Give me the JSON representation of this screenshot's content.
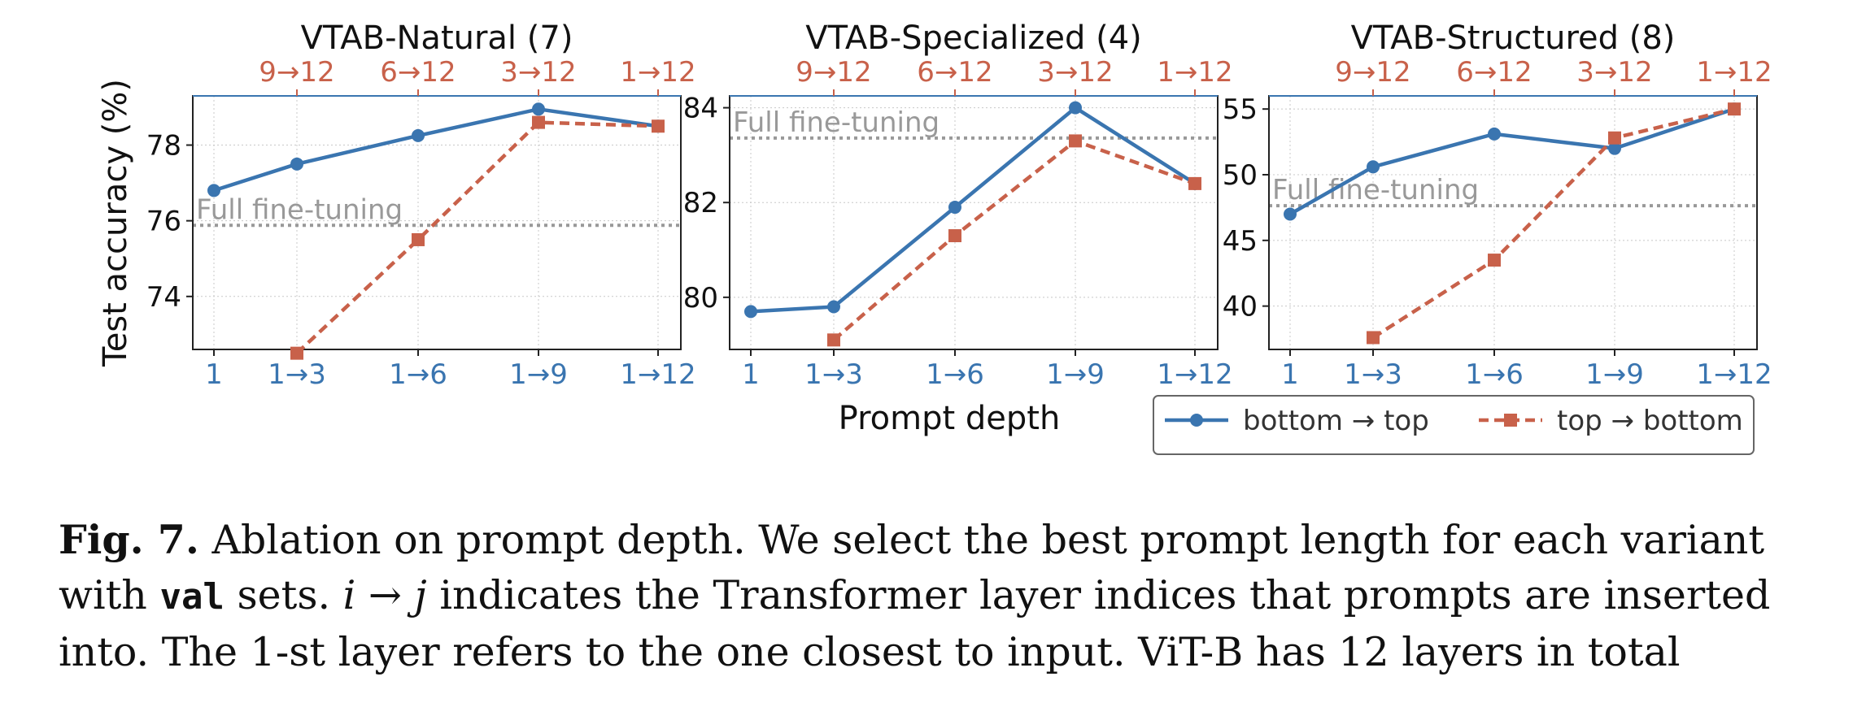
{
  "colors": {
    "bottom_top": "#3a75b0",
    "top_bottom": "#c8614a",
    "full_ft": "#999999",
    "grid": "#c8c8c8"
  },
  "chart_data": [
    {
      "type": "line",
      "title": "VTAB-Natural (7)",
      "categories": [
        "1",
        "1→3",
        "1→6",
        "1→9",
        "1→12"
      ],
      "top_ticks": [
        "9→12",
        "6→12",
        "3→12",
        "1→12"
      ],
      "ylim": [
        72.6,
        79.3
      ],
      "yticks": [
        74,
        76,
        78
      ],
      "ylabel": "Test accuracy (%)",
      "full_finetuning": 75.88,
      "full_label": "Full fine-tuning",
      "series": [
        {
          "name": "bottom → top",
          "values": [
            76.8,
            77.5,
            78.25,
            78.95,
            78.5
          ]
        },
        {
          "name": "top → bottom",
          "values": [
            null,
            72.5,
            75.5,
            78.6,
            78.5
          ]
        }
      ]
    },
    {
      "type": "line",
      "title": "VTAB-Specialized (4)",
      "categories": [
        "1",
        "1→3",
        "1→6",
        "1→9",
        "1→12"
      ],
      "top_ticks": [
        "9→12",
        "6→12",
        "3→12",
        "1→12"
      ],
      "ylim": [
        78.9,
        84.25
      ],
      "yticks": [
        80,
        82,
        84
      ],
      "ylabel": "",
      "full_finetuning": 83.36,
      "full_label": "Full fine-tuning",
      "series": [
        {
          "name": "bottom → top",
          "values": [
            79.7,
            79.8,
            81.9,
            84.0,
            82.4
          ]
        },
        {
          "name": "top → bottom",
          "values": [
            null,
            79.1,
            81.3,
            83.3,
            82.4
          ]
        }
      ]
    },
    {
      "type": "line",
      "title": "VTAB-Structured (8)",
      "categories": [
        "1",
        "1→3",
        "1→6",
        "1→9",
        "1→12"
      ],
      "top_ticks": [
        "9→12",
        "6→12",
        "3→12",
        "1→12"
      ],
      "ylim": [
        36.7,
        56.0
      ],
      "yticks": [
        40,
        45,
        50,
        55
      ],
      "ylabel": "",
      "full_finetuning": 47.64,
      "full_label": "Full fine-tuning",
      "series": [
        {
          "name": "bottom → top",
          "values": [
            47.0,
            50.6,
            53.1,
            52.0,
            55.0
          ]
        },
        {
          "name": "top → bottom",
          "values": [
            null,
            37.6,
            43.5,
            52.8,
            55.0
          ]
        }
      ]
    }
  ],
  "xlabel": "Prompt depth",
  "legend": {
    "items": [
      "bottom → top",
      "top → bottom"
    ],
    "placement": "bottom-right"
  },
  "caption": {
    "fig_label": "Fig. 7.",
    "line1_text": " Ablation on prompt depth. We select the best prompt length for each variant",
    "line2_a": "with ",
    "line2_code": "val",
    "line2_b": " sets. ",
    "line2_i": "i",
    "line2_arrow": " → ",
    "line2_j": "j",
    "line2_c": " indicates the Transformer layer indices that prompts are inserted",
    "line3": "into. The 1-st layer refers to the one closest to input. ViT-B has 12 layers in total"
  }
}
